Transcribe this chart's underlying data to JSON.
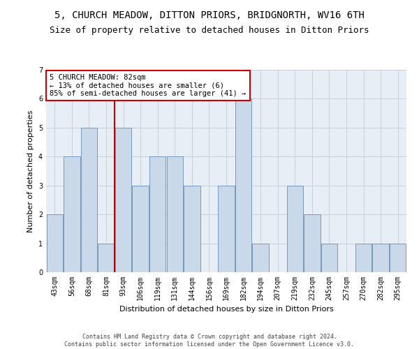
{
  "title": "5, CHURCH MEADOW, DITTON PRIORS, BRIDGNORTH, WV16 6TH",
  "subtitle": "Size of property relative to detached houses in Ditton Priors",
  "xlabel": "Distribution of detached houses by size in Ditton Priors",
  "ylabel": "Number of detached properties",
  "footer_line1": "Contains HM Land Registry data © Crown copyright and database right 2024.",
  "footer_line2": "Contains public sector information licensed under the Open Government Licence v3.0.",
  "annotation_title": "5 CHURCH MEADOW: 82sqm",
  "annotation_line1": "← 13% of detached houses are smaller (6)",
  "annotation_line2": "85% of semi-detached houses are larger (41) →",
  "bar_color": "#c9d9ea",
  "bar_edge_color": "#7799bb",
  "highlight_line_color": "#cc0000",
  "annotation_box_color": "#cc0000",
  "categories": [
    "43sqm",
    "56sqm",
    "68sqm",
    "81sqm",
    "93sqm",
    "106sqm",
    "119sqm",
    "131sqm",
    "144sqm",
    "156sqm",
    "169sqm",
    "182sqm",
    "194sqm",
    "207sqm",
    "219sqm",
    "232sqm",
    "245sqm",
    "257sqm",
    "270sqm",
    "282sqm",
    "295sqm"
  ],
  "values": [
    2,
    4,
    5,
    1,
    5,
    3,
    4,
    4,
    3,
    0,
    3,
    6,
    1,
    0,
    3,
    2,
    1,
    0,
    1,
    1,
    1
  ],
  "highlight_index": 3,
  "ylim": [
    0,
    7
  ],
  "yticks": [
    0,
    1,
    2,
    3,
    4,
    5,
    6,
    7
  ],
  "background_color": "#ffffff",
  "axes_bg_color": "#e8eef5",
  "grid_color": "#c8d0dc",
  "title_fontsize": 10,
  "subtitle_fontsize": 9,
  "annotation_fontsize": 7.5,
  "axis_fontsize": 8,
  "tick_fontsize": 7,
  "footer_fontsize": 6
}
